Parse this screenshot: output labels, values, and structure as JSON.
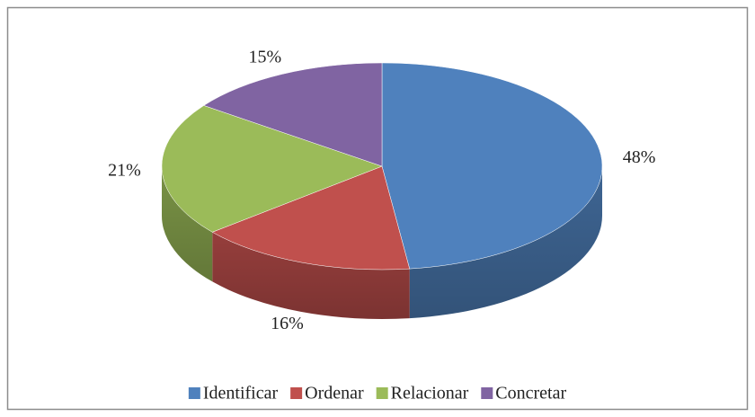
{
  "chart_data": {
    "type": "pie",
    "categories": [
      "Identificar",
      "Ordenar",
      "Relacionar",
      "Concretar"
    ],
    "values": [
      48,
      16,
      21,
      15
    ],
    "value_labels": [
      "48%",
      "16%",
      "21%",
      "15%"
    ],
    "colors": [
      "#4f81bd",
      "#c0504d",
      "#9bbb59",
      "#8064a2"
    ],
    "legend": "bottom"
  }
}
